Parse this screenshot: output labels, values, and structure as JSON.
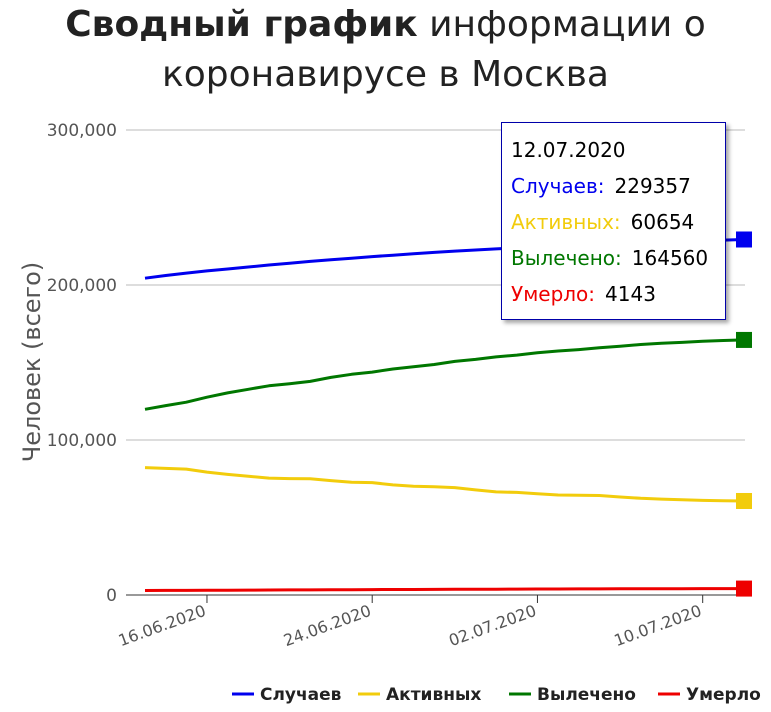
{
  "title": {
    "bold": "Сводный график",
    "rest_line1": "информации о",
    "line2": "коронавирусе в Москва"
  },
  "tooltip": {
    "date": "12.07.2020",
    "rows": [
      {
        "label": "Случаев:",
        "value": "229357",
        "color": "#0000ee"
      },
      {
        "label": "Активных:",
        "value": "60654",
        "color": "#f2cc0c"
      },
      {
        "label": "Вылечено:",
        "value": "164560",
        "color": "#007700"
      },
      {
        "label": "Умерло:",
        "value": "4143",
        "color": "#ee0000"
      }
    ]
  },
  "chart_data": {
    "type": "line",
    "ylabel": "Человек (всего)",
    "xlabel": "",
    "ylim": [
      0,
      300000
    ],
    "yticks": [
      0,
      100000,
      200000,
      300000
    ],
    "ytick_labels": [
      "0",
      "100,000",
      "200,000",
      "300,000"
    ],
    "xtick_labels": [
      "16.06.2020",
      "24.06.2020",
      "02.07.2020",
      "10.07.2020"
    ],
    "xtick_index": [
      3,
      11,
      19,
      27
    ],
    "grid": true,
    "legend_position": "bottom",
    "x": [
      "13.06.2020",
      "14.06.2020",
      "15.06.2020",
      "16.06.2020",
      "17.06.2020",
      "18.06.2020",
      "19.06.2020",
      "20.06.2020",
      "21.06.2020",
      "22.06.2020",
      "23.06.2020",
      "24.06.2020",
      "25.06.2020",
      "26.06.2020",
      "27.06.2020",
      "28.06.2020",
      "29.06.2020",
      "30.06.2020",
      "01.07.2020",
      "02.07.2020",
      "03.07.2020",
      "04.07.2020",
      "05.07.2020",
      "06.07.2020",
      "07.07.2020",
      "08.07.2020",
      "09.07.2020",
      "10.07.2020",
      "11.07.2020",
      "12.07.2020"
    ],
    "series": [
      {
        "name": "Случаев",
        "color": "#0000ee",
        "values": [
          204400,
          206100,
          207700,
          209100,
          210300,
          211600,
          212900,
          214000,
          215200,
          216300,
          217300,
          218300,
          219200,
          220100,
          221000,
          221900,
          222600,
          223300,
          224000,
          224700,
          225300,
          225900,
          226500,
          227100,
          227600,
          228000,
          228400,
          228700,
          229000,
          229357
        ]
      },
      {
        "name": "Активных",
        "color": "#f2cc0c",
        "values": [
          82200,
          81700,
          81200,
          79300,
          77800,
          76600,
          75400,
          75100,
          75000,
          73800,
          72700,
          72500,
          71000,
          70100,
          69800,
          69300,
          67800,
          66500,
          66200,
          65300,
          64500,
          64300,
          64200,
          63200,
          62400,
          61900,
          61500,
          61000,
          60800,
          60654
        ]
      },
      {
        "name": "Вылечено",
        "color": "#007700",
        "values": [
          119800,
          122200,
          124400,
          127600,
          130400,
          132700,
          135000,
          136300,
          137800,
          140400,
          142400,
          143800,
          145800,
          147200,
          148700,
          150700,
          152000,
          153600,
          154800,
          156300,
          157400,
          158300,
          159500,
          160500,
          161600,
          162400,
          163000,
          163700,
          164200,
          164560
        ]
      },
      {
        "name": "Умерло",
        "color": "#ee0000",
        "values": [
          2900,
          2950,
          3000,
          3060,
          3110,
          3160,
          3220,
          3270,
          3320,
          3380,
          3420,
          3480,
          3520,
          3560,
          3610,
          3650,
          3700,
          3750,
          3790,
          3840,
          3880,
          3920,
          3960,
          4000,
          4030,
          4060,
          4090,
          4110,
          4130,
          4143
        ]
      }
    ]
  }
}
